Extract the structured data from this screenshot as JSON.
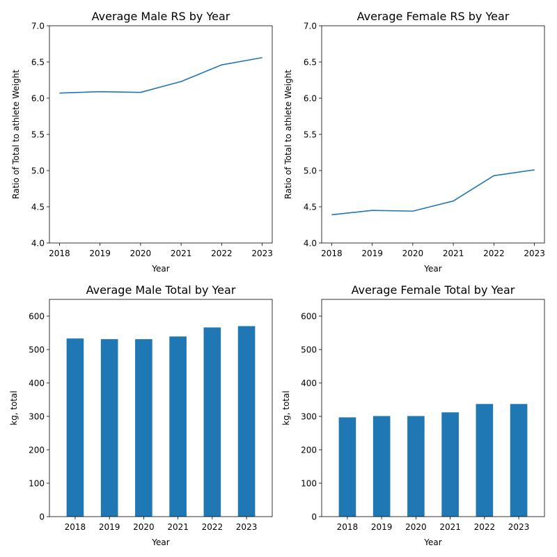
{
  "colors": {
    "series": "#1f77b4",
    "axis": "#000000",
    "background": "#ffffff"
  },
  "chart_data": [
    {
      "type": "line",
      "title": "Average Male RS by Year",
      "xlabel": "Year",
      "ylabel": "Ratio of Total to athlete Weight",
      "x": [
        2018,
        2019,
        2020,
        2021,
        2022,
        2023
      ],
      "values": [
        6.07,
        6.09,
        6.08,
        6.23,
        6.46,
        6.56
      ],
      "ylim": [
        4.0,
        7.0
      ],
      "yticks": [
        "4.0",
        "4.5",
        "5.0",
        "5.5",
        "6.0",
        "6.5",
        "7.0"
      ],
      "xticks": [
        "2018",
        "2019",
        "2020",
        "2021",
        "2022",
        "2023"
      ],
      "grid": false
    },
    {
      "type": "line",
      "title": "Average Female RS by Year",
      "xlabel": "Year",
      "ylabel": "Ratio of Total to athlete Weight",
      "x": [
        2018,
        2019,
        2020,
        2021,
        2022,
        2023
      ],
      "values": [
        4.39,
        4.45,
        4.44,
        4.58,
        4.93,
        5.01
      ],
      "ylim": [
        4.0,
        7.0
      ],
      "yticks": [
        "4.0",
        "4.5",
        "5.0",
        "5.5",
        "6.0",
        "6.5",
        "7.0"
      ],
      "xticks": [
        "2018",
        "2019",
        "2020",
        "2021",
        "2022",
        "2023"
      ],
      "grid": false
    },
    {
      "type": "bar",
      "title": "Average Male Total by Year",
      "xlabel": "Year",
      "ylabel": "kg, total",
      "categories": [
        "2018",
        "2019",
        "2020",
        "2021",
        "2022",
        "2023"
      ],
      "values": [
        533,
        531,
        531,
        539,
        566,
        570
      ],
      "ylim": [
        0,
        650
      ],
      "yticks": [
        "0",
        "100",
        "200",
        "300",
        "400",
        "500",
        "600"
      ],
      "grid": false
    },
    {
      "type": "bar",
      "title": "Average Female Total by Year",
      "xlabel": "Year",
      "ylabel": "kg, total",
      "categories": [
        "2018",
        "2019",
        "2020",
        "2021",
        "2022",
        "2023"
      ],
      "values": [
        297,
        301,
        301,
        312,
        337,
        337
      ],
      "ylim": [
        0,
        650
      ],
      "yticks": [
        "0",
        "100",
        "200",
        "300",
        "400",
        "500",
        "600"
      ],
      "grid": false
    }
  ]
}
